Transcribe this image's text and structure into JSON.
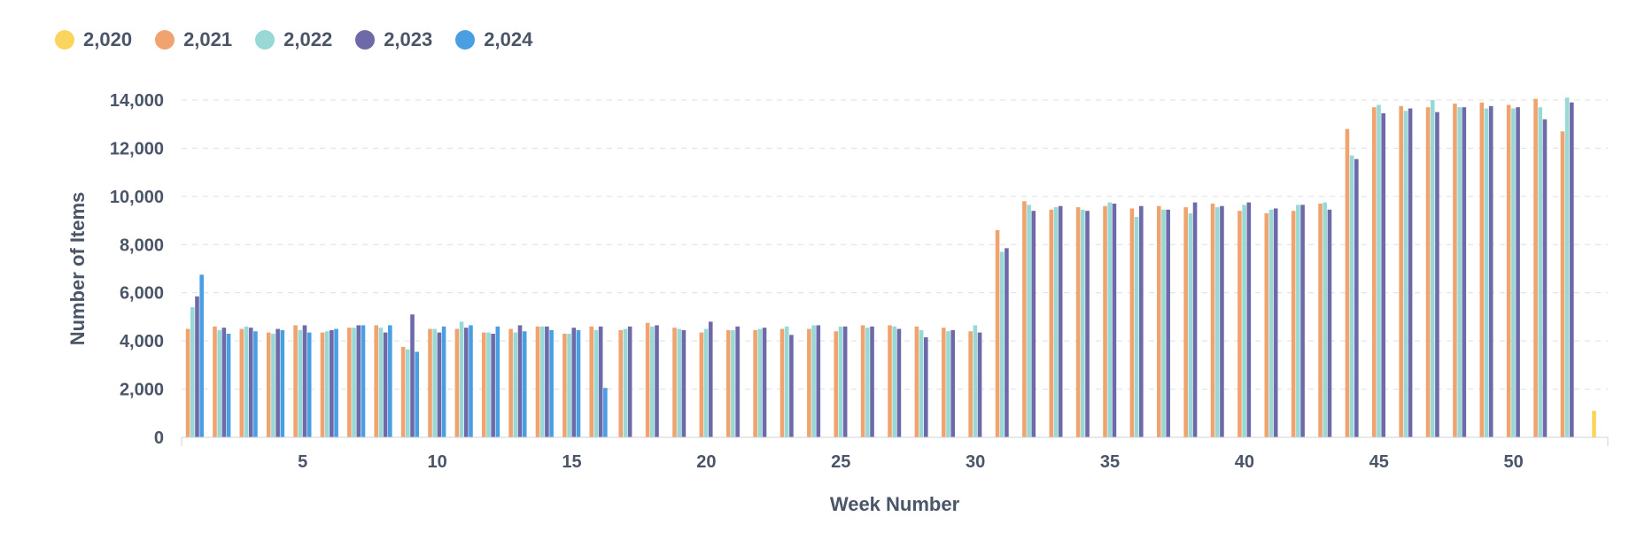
{
  "chart_data": {
    "type": "bar",
    "title": "",
    "xlabel": "Week Number",
    "ylabel": "Number of Items",
    "ylim": [
      0,
      14000
    ],
    "yticks": [
      0,
      2000,
      4000,
      6000,
      8000,
      10000,
      12000,
      14000
    ],
    "ytick_labels": [
      "0",
      "2,000",
      "4,000",
      "6,000",
      "8,000",
      "10,000",
      "12,000",
      "14,000"
    ],
    "xlim": [
      0.5,
      53.5
    ],
    "xticks": [
      5,
      10,
      15,
      20,
      25,
      30,
      35,
      40,
      45,
      50
    ],
    "xtick_labels": [
      "5",
      "10",
      "15",
      "20",
      "25",
      "30",
      "35",
      "40",
      "45",
      "50"
    ],
    "grid": "horizontal dashed",
    "legend": "top-left",
    "categories": [
      1,
      2,
      3,
      4,
      5,
      6,
      7,
      8,
      9,
      10,
      11,
      12,
      13,
      14,
      15,
      16,
      17,
      18,
      19,
      20,
      21,
      22,
      23,
      24,
      25,
      26,
      27,
      28,
      29,
      30,
      31,
      32,
      33,
      34,
      35,
      36,
      37,
      38,
      39,
      40,
      41,
      42,
      43,
      44,
      45,
      46,
      47,
      48,
      49,
      50,
      51,
      52,
      53
    ],
    "series": [
      {
        "name": "2,020",
        "color": "#f9d55e",
        "values": [
          null,
          null,
          null,
          null,
          null,
          null,
          null,
          null,
          null,
          null,
          null,
          null,
          null,
          null,
          null,
          null,
          null,
          null,
          null,
          null,
          null,
          null,
          null,
          null,
          null,
          null,
          null,
          null,
          null,
          null,
          null,
          null,
          null,
          null,
          null,
          null,
          null,
          null,
          null,
          null,
          null,
          null,
          null,
          null,
          null,
          null,
          null,
          null,
          null,
          null,
          null,
          null,
          1100
        ]
      },
      {
        "name": "2,021",
        "color": "#f0a36e",
        "values": [
          4500,
          4600,
          4500,
          4350,
          4650,
          4350,
          4550,
          4650,
          3750,
          4500,
          4500,
          4350,
          4500,
          4600,
          4300,
          4600,
          4450,
          4750,
          4550,
          4350,
          4450,
          4450,
          4500,
          4500,
          4400,
          4650,
          4650,
          4600,
          4550,
          4400,
          8600,
          9800,
          9450,
          9550,
          9600,
          9500,
          9600,
          9550,
          9700,
          9400,
          9300,
          9400,
          9700,
          12800,
          13700,
          13750,
          13700,
          13850,
          13900,
          13800,
          14050,
          12700,
          null
        ]
      },
      {
        "name": "2,022",
        "color": "#98d9d6",
        "values": [
          5400,
          4450,
          4600,
          4300,
          4450,
          4400,
          4550,
          4550,
          3650,
          4500,
          4800,
          4350,
          4350,
          4600,
          4300,
          4450,
          4500,
          4600,
          4500,
          4500,
          4450,
          4500,
          4600,
          4650,
          4600,
          4550,
          4600,
          4450,
          4400,
          4650,
          7700,
          9650,
          9550,
          9450,
          9750,
          9150,
          9450,
          9300,
          9550,
          9650,
          9450,
          9650,
          9750,
          11700,
          13800,
          13550,
          14000,
          13700,
          13650,
          13650,
          13700,
          14100,
          null
        ]
      },
      {
        "name": "2,023",
        "color": "#6e6aaa",
        "values": [
          5850,
          4550,
          4550,
          4500,
          4650,
          4450,
          4650,
          4350,
          5100,
          4350,
          4550,
          4300,
          4650,
          4600,
          4550,
          4600,
          4600,
          4650,
          4450,
          4800,
          4600,
          4550,
          4250,
          4650,
          4600,
          4600,
          4500,
          4150,
          4450,
          4350,
          7850,
          9400,
          9600,
          9400,
          9700,
          9600,
          9450,
          9750,
          9600,
          9750,
          9500,
          9650,
          9450,
          11550,
          13450,
          13650,
          13500,
          13700,
          13750,
          13700,
          13200,
          13900,
          null
        ]
      },
      {
        "name": "2,024",
        "color": "#4a9fe3",
        "values": [
          6750,
          4300,
          4400,
          4450,
          4350,
          4500,
          4650,
          4650,
          3550,
          4600,
          4650,
          4600,
          4400,
          4450,
          4450,
          2050,
          null,
          null,
          null,
          null,
          null,
          null,
          null,
          null,
          null,
          null,
          null,
          null,
          null,
          null,
          null,
          null,
          null,
          null,
          null,
          null,
          null,
          null,
          null,
          null,
          null,
          null,
          null,
          null,
          null,
          null,
          null,
          null,
          null,
          null,
          null,
          null,
          null
        ]
      }
    ]
  }
}
